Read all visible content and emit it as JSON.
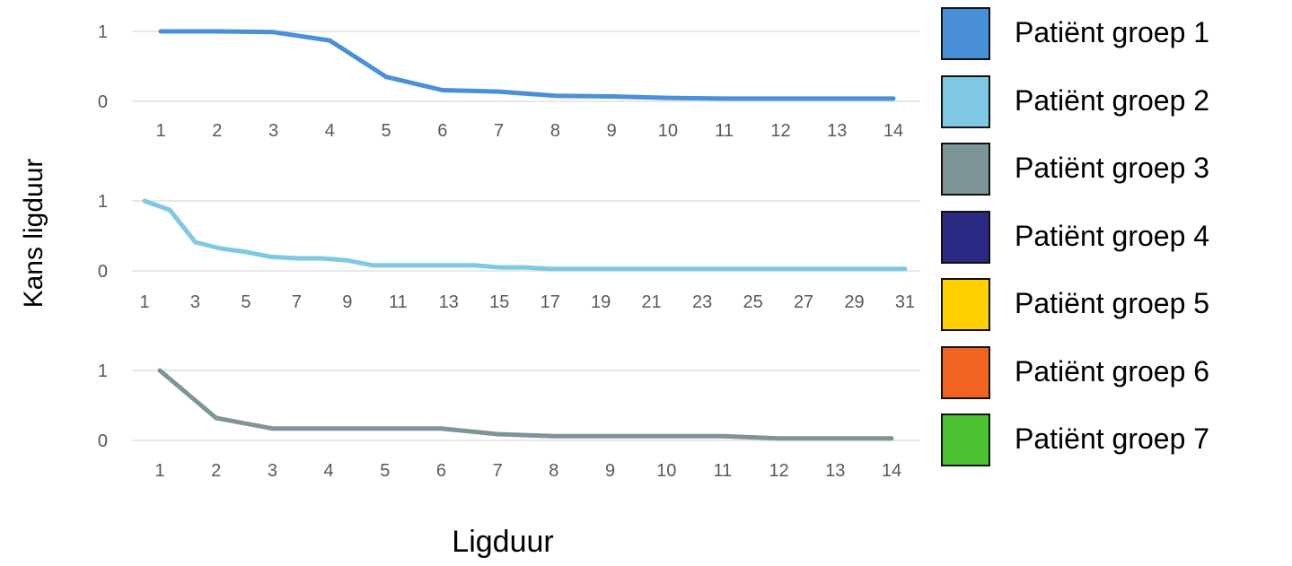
{
  "chart_data": [
    {
      "type": "line",
      "x": [
        "1",
        "2",
        "3",
        "4",
        "5",
        "6",
        "7",
        "8",
        "9",
        "10",
        "11",
        "12",
        "13",
        "14"
      ],
      "series": [
        {
          "values": [
            1.0,
            1.0,
            0.99,
            0.87,
            0.35,
            0.16,
            0.14,
            0.08,
            0.07,
            0.05,
            0.04,
            0.04,
            0.04,
            0.04
          ]
        }
      ],
      "ylim": [
        0,
        1
      ],
      "yticks": [
        "0",
        "1"
      ],
      "color": "#4a90d9",
      "grid": true
    },
    {
      "type": "line",
      "x": [
        "1",
        "2",
        "3",
        "4",
        "5",
        "6",
        "7",
        "8",
        "9",
        "10",
        "11",
        "12",
        "13",
        "14",
        "15",
        "16",
        "17",
        "18",
        "19",
        "20",
        "21",
        "22",
        "23",
        "24",
        "25",
        "26",
        "27",
        "28",
        "29",
        "30",
        "31"
      ],
      "x_tick_labels": [
        "1",
        "3",
        "5",
        "7",
        "9",
        "11",
        "13",
        "15",
        "17",
        "19",
        "21",
        "23",
        "25",
        "27",
        "29",
        "31"
      ],
      "series": [
        {
          "values": [
            1.0,
            0.87,
            0.41,
            0.32,
            0.27,
            0.2,
            0.18,
            0.18,
            0.15,
            0.08,
            0.08,
            0.08,
            0.08,
            0.08,
            0.05,
            0.05,
            0.03,
            0.03,
            0.03,
            0.03,
            0.03,
            0.03,
            0.03,
            0.03,
            0.03,
            0.03,
            0.03,
            0.03,
            0.03,
            0.03,
            0.03
          ]
        }
      ],
      "ylim": [
        0,
        1
      ],
      "yticks": [
        "0",
        "1"
      ],
      "color": "#7ec8e3",
      "grid": true
    },
    {
      "type": "line",
      "x": [
        "1",
        "2",
        "3",
        "4",
        "5",
        "6",
        "7",
        "8",
        "9",
        "10",
        "11",
        "12",
        "13",
        "14"
      ],
      "series": [
        {
          "values": [
            1.0,
            0.32,
            0.17,
            0.17,
            0.17,
            0.17,
            0.09,
            0.06,
            0.06,
            0.06,
            0.06,
            0.03,
            0.03,
            0.03
          ]
        }
      ],
      "ylim": [
        0,
        1
      ],
      "yticks": [
        "0",
        "1"
      ],
      "color": "#7d9597",
      "grid": true
    }
  ],
  "axes": {
    "ylabel": "Kans ligduur",
    "xlabel": "Ligduur"
  },
  "legend": {
    "placement": "right",
    "items": [
      {
        "label": "Patiënt groep 1",
        "color": "#4a90d9"
      },
      {
        "label": "Patiënt groep 2",
        "color": "#7ec8e3"
      },
      {
        "label": "Patiënt groep 3",
        "color": "#7d9597"
      },
      {
        "label": "Patiënt groep 4",
        "color": "#2b2a82"
      },
      {
        "label": "Patiënt groep 5",
        "color": "#ffd000"
      },
      {
        "label": "Patiënt groep 6",
        "color": "#f26322"
      },
      {
        "label": "Patiënt groep 7",
        "color": "#4cc230"
      }
    ]
  }
}
